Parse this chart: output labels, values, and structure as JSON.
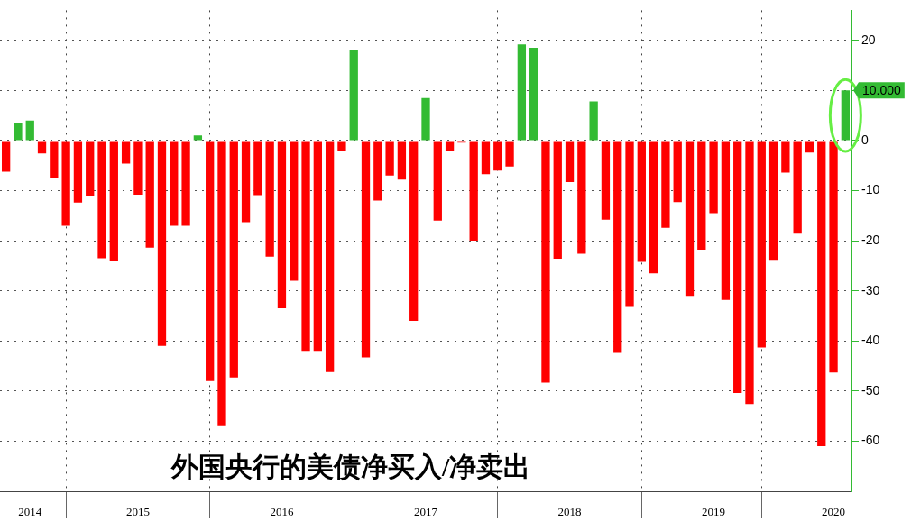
{
  "chart_data": {
    "type": "bar",
    "title": "外国央行的美债净买入/净卖出",
    "categories": [
      null,
      null,
      "2014",
      null,
      null,
      null,
      null,
      null,
      null,
      null,
      null,
      "2015",
      null,
      null,
      null,
      null,
      null,
      null,
      null,
      null,
      null,
      null,
      null,
      "2016",
      null,
      null,
      null,
      null,
      null,
      null,
      null,
      null,
      null,
      null,
      null,
      "2017",
      null,
      null,
      null,
      null,
      null,
      null,
      null,
      null,
      null,
      null,
      null,
      "2018",
      null,
      null,
      null,
      null,
      null,
      null,
      null,
      null,
      null,
      null,
      null,
      "2019",
      null,
      null,
      null,
      null,
      null,
      null,
      null,
      null,
      null,
      "2020",
      null
    ],
    "values": [
      -6.2,
      3.6,
      4,
      -2.6,
      -7.5,
      -17,
      -12.4,
      -11,
      -23.5,
      -24,
      -4.6,
      -10.8,
      -21.4,
      -41,
      -17,
      -17,
      1,
      -48,
      -57,
      -47.3,
      -16.3,
      -10.9,
      -23.2,
      -33.5,
      -28,
      -42,
      -42,
      -46.2,
      -2,
      18,
      -43.3,
      -12,
      -7,
      -7.8,
      -36,
      8.5,
      -16,
      -2,
      -0.4,
      -20,
      -6.7,
      -6,
      -5.2,
      19.2,
      18.5,
      -48.3,
      -23.6,
      -8.3,
      -22.6,
      7.8,
      -15.8,
      -42.4,
      -33.2,
      -24.2,
      -26.5,
      -17.4,
      -12.3,
      -31,
      -21.8,
      -14.5,
      -31.8,
      -50.4,
      -52.6,
      -41.3,
      -23.8,
      -6.4,
      -18.6,
      -2.4,
      -61,
      -46.3,
      10
    ],
    "annotations": [
      "10.000"
    ],
    "colors": [
      "#ff0000",
      "#33bb33",
      "#33bb33",
      "#ff0000",
      "#ff0000",
      "#ff0000",
      "#ff0000",
      "#ff0000",
      "#ff0000",
      "#ff0000",
      "#ff0000",
      "#ff0000",
      "#ff0000",
      "#ff0000",
      "#ff0000",
      "#ff0000",
      "#33bb33",
      "#ff0000",
      "#ff0000",
      "#ff0000",
      "#ff0000",
      "#ff0000",
      "#ff0000",
      "#ff0000",
      "#ff0000",
      "#ff0000",
      "#ff0000",
      "#ff0000",
      "#ff0000",
      "#33bb33",
      "#ff0000",
      "#ff0000",
      "#ff0000",
      "#ff0000",
      "#ff0000",
      "#33bb33",
      "#ff0000",
      "#ff0000",
      "#ff0000",
      "#ff0000",
      "#ff0000",
      "#ff0000",
      "#ff0000",
      "#33bb33",
      "#33bb33",
      "#ff0000",
      "#ff0000",
      "#ff0000",
      "#ff0000",
      "#33bb33",
      "#ff0000",
      "#ff0000",
      "#ff0000",
      "#ff0000",
      "#ff0000",
      "#ff0000",
      "#ff0000",
      "#ff0000",
      "#ff0000",
      "#ff0000",
      "#ff0000",
      "#ff0000",
      "#ff0000",
      "#ff0000",
      "#ff0000",
      "#ff0000",
      "#ff0000",
      "#ff0000",
      "#ff0000",
      "#ff0000",
      "#33bb33"
    ],
    "ylim": [
      -70,
      26
    ],
    "yticks": [
      20,
      {
        "value": 10,
        "label": null
      },
      0,
      -10,
      -20,
      -30,
      -40,
      -50,
      -60
    ],
    "grid": true,
    "legend": false
  }
}
